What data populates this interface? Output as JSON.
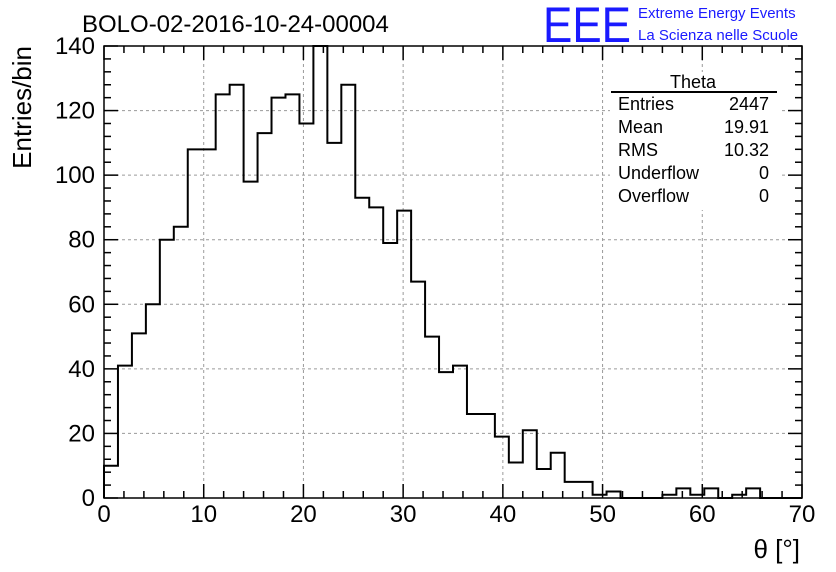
{
  "chart_data": {
    "type": "bar",
    "title": "BOLO-02-2016-10-24-00004",
    "xlabel": "θ [°]",
    "ylabel": "Entries/bin",
    "xlim": [
      0,
      70
    ],
    "ylim": [
      0,
      140
    ],
    "grid": true,
    "bin_width": 1.4,
    "x_bin_edges_start": 0,
    "values": [
      10,
      41,
      51,
      60,
      80,
      84,
      108,
      108,
      125,
      128,
      98,
      113,
      124,
      125,
      116,
      140,
      110,
      128,
      93,
      90,
      79,
      89,
      67,
      50,
      39,
      41,
      26,
      26,
      19,
      11,
      21,
      9,
      14,
      5,
      5,
      1,
      2,
      0,
      0,
      0,
      1,
      3,
      1,
      3,
      0,
      1,
      3,
      0,
      0,
      0
    ],
    "x_ticks": [
      "0",
      "10",
      "20",
      "30",
      "40",
      "50",
      "60",
      "70"
    ],
    "y_ticks": [
      "0",
      "20",
      "40",
      "60",
      "80",
      "100",
      "120",
      "140"
    ],
    "stats_box": {
      "title": "Theta",
      "entries_label": "Entries",
      "entries_value": "2447",
      "mean_label": "Mean",
      "mean_value": "19.91",
      "rms_label": "RMS",
      "rms_value": "10.32",
      "underflow_label": "Underflow",
      "underflow_value": "0",
      "overflow_label": "Overflow",
      "overflow_value": "0",
      "placement": "top-right"
    }
  },
  "logo": {
    "mark": "EEE",
    "line1": "Extreme Energy Events",
    "line2": "La Scienza nelle Scuole",
    "color": "#1a1aff"
  }
}
